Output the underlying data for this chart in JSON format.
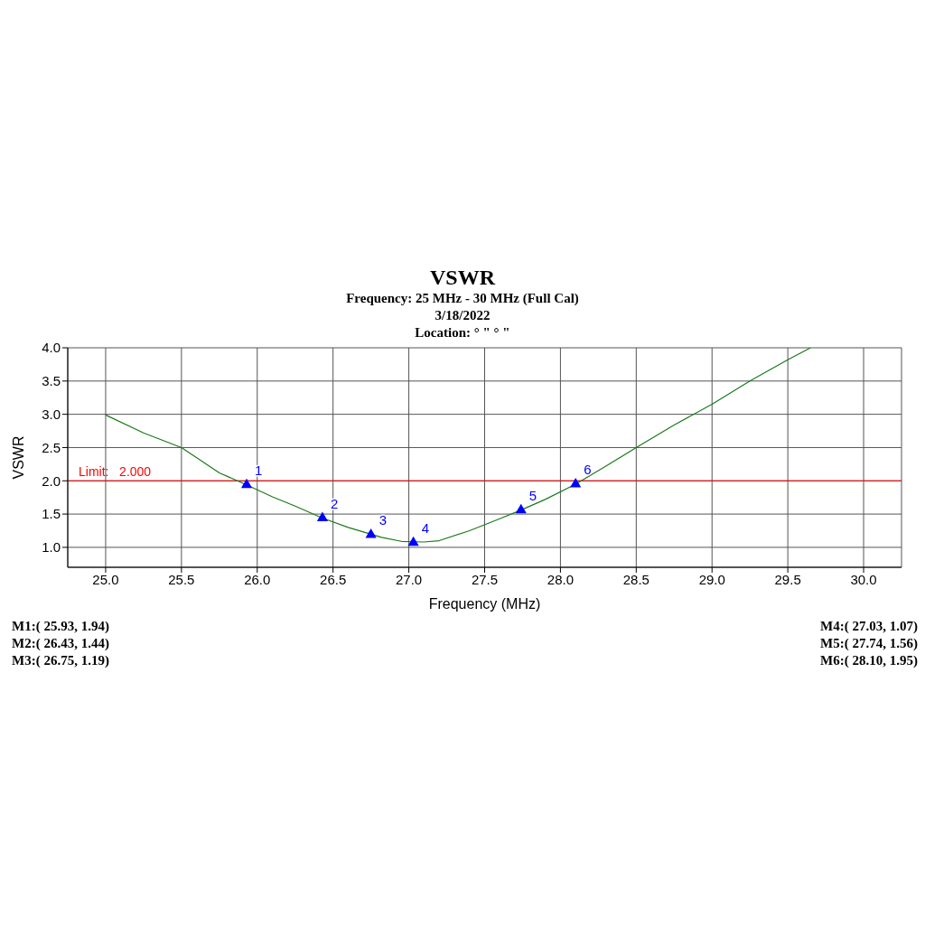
{
  "chart_data": {
    "type": "line",
    "title": "VSWR",
    "subtitle": "Frequency: 25 MHz - 30 MHz (Full Cal)\n3/18/2022\nLocation: ° \"  ° \"",
    "xlabel": "Frequency (MHz)",
    "ylabel": "VSWR",
    "xlim": [
      24.75,
      30.25
    ],
    "xticks": [
      {
        "value": 25,
        "label": "25.0"
      },
      {
        "value": 25.5,
        "label": "25.5"
      },
      {
        "value": 26,
        "label": "26.0"
      },
      {
        "value": 26.5,
        "label": "26.5"
      },
      {
        "value": 27,
        "label": "27.0"
      },
      {
        "value": 27.5,
        "label": "27.5"
      },
      {
        "value": 28,
        "label": "28.0"
      },
      {
        "value": 28.5,
        "label": "28.5"
      },
      {
        "value": 29,
        "label": "29.0"
      },
      {
        "value": 29.5,
        "label": "29.5"
      },
      {
        "value": 30,
        "label": "30.0"
      }
    ],
    "ylim": [
      0.7,
      4.0
    ],
    "yticks": [
      {
        "value": 1,
        "label": "1.0"
      },
      {
        "value": 1.5,
        "label": "1.5"
      },
      {
        "value": 2,
        "label": "2.0"
      },
      {
        "value": 2.5,
        "label": "2.5"
      },
      {
        "value": 3,
        "label": "3.0"
      },
      {
        "value": 3.5,
        "label": "3.5"
      },
      {
        "value": 4,
        "label": "4.0"
      }
    ],
    "grid": true,
    "series": [
      {
        "color": "#1a7a1a",
        "marker": "none",
        "x": [
          25.0,
          25.25,
          25.5,
          25.75,
          25.93,
          26.1,
          26.25,
          26.43,
          26.6,
          26.82,
          26.95,
          27.1,
          27.2,
          27.4,
          27.6,
          27.74,
          27.9,
          28.1,
          28.3,
          28.5,
          28.75,
          29.0,
          29.25,
          29.5,
          29.65
        ],
        "values": [
          2.99,
          2.72,
          2.5,
          2.12,
          1.94,
          1.76,
          1.62,
          1.44,
          1.3,
          1.15,
          1.09,
          1.08,
          1.1,
          1.25,
          1.43,
          1.56,
          1.72,
          1.95,
          2.22,
          2.5,
          2.84,
          3.15,
          3.5,
          3.82,
          4.0
        ]
      },
      {
        "type": "scatter",
        "color": "#0000ff",
        "marker": "triangle",
        "x": [
          25.93,
          26.43,
          26.75,
          27.03,
          27.74,
          28.1
        ],
        "values": [
          1.94,
          1.44,
          1.19,
          1.07,
          1.56,
          1.95
        ]
      }
    ],
    "ref_lines": [
      {
        "axis": "y",
        "value": 2,
        "label": "Limit:   2.000",
        "color": "#ff0000"
      }
    ],
    "annotations": [
      {
        "text": "1",
        "x": 25.93,
        "y": 1.94
      },
      {
        "text": "2",
        "x": 26.43,
        "y": 1.44
      },
      {
        "text": "3",
        "x": 26.75,
        "y": 1.19
      },
      {
        "text": "4",
        "x": 27.03,
        "y": 1.07
      },
      {
        "text": "5",
        "x": 27.74,
        "y": 1.56
      },
      {
        "text": "6",
        "x": 28.1,
        "y": 1.95
      },
      "M1:( 25.93,  1.94)",
      "M2:( 26.43,  1.44)",
      "M3:( 26.75,  1.19)",
      "M4:( 27.03,  1.07)",
      "M5:( 27.74,  1.56)",
      "M6:( 28.10,  1.95)"
    ]
  }
}
